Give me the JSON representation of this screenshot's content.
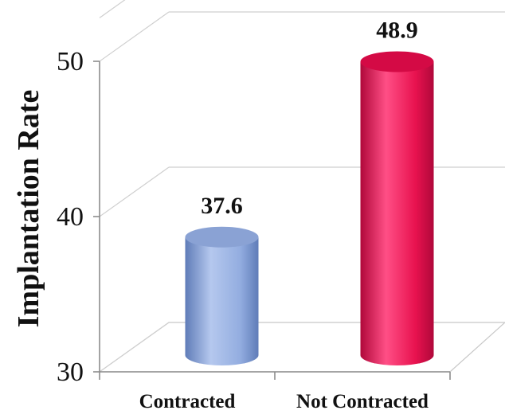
{
  "chart_data": {
    "type": "bar",
    "style": "3d-cylinder",
    "categories": [
      "Contracted",
      "Not Contracted"
    ],
    "values": [
      37.6,
      48.9
    ],
    "value_labels": [
      "37.6",
      "48.9"
    ],
    "ylabel": "Implantation Rate",
    "xlabel": "",
    "ylim": [
      30,
      50
    ],
    "yticks": [
      30,
      40,
      50
    ],
    "grid": true,
    "legend": "none",
    "colors": {
      "Contracted": {
        "light": "#b5c8ee",
        "mid": "#93ade0",
        "dark": "#5f7cb8",
        "top": "#8aa2d4"
      },
      "Not Contracted": {
        "light": "#ff4f86",
        "mid": "#e8124f",
        "dark": "#b0083a",
        "top": "#d40a45"
      }
    }
  }
}
